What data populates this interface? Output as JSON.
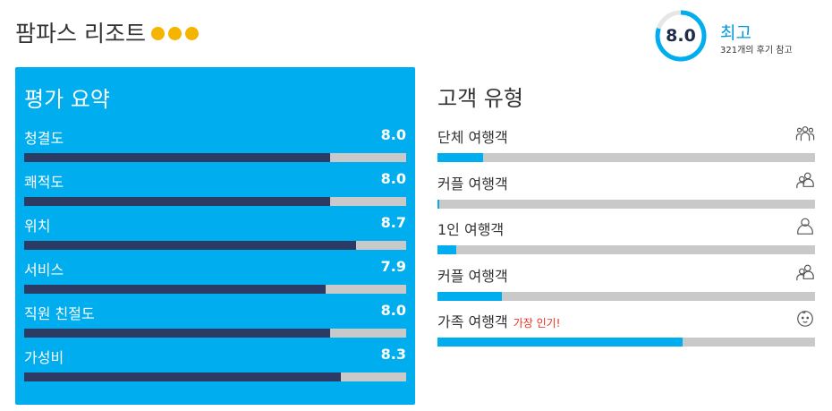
{
  "header": {
    "hotel_name": "팜파스 리조트",
    "stars": 3,
    "score": "8.0",
    "score_fraction": 0.8,
    "score_label": "최고",
    "score_sub": "321개의 후기 참고"
  },
  "summary": {
    "title": "평가 요약",
    "items": [
      {
        "label": "청결도",
        "value": "8.0",
        "fraction": 0.8
      },
      {
        "label": "쾌적도",
        "value": "8.0",
        "fraction": 0.8
      },
      {
        "label": "위치",
        "value": "8.7",
        "fraction": 0.87
      },
      {
        "label": "서비스",
        "value": "7.9",
        "fraction": 0.79
      },
      {
        "label": "직원 친절도",
        "value": "8.0",
        "fraction": 0.8
      },
      {
        "label": "가성비",
        "value": "8.3",
        "fraction": 0.83
      }
    ]
  },
  "customers": {
    "title": "고객 유형",
    "items": [
      {
        "label": "단체 여행객",
        "badge": "",
        "fraction": 0.12,
        "icon": "group-icon"
      },
      {
        "label": "커플 여행객",
        "badge": "",
        "fraction": 0.005,
        "icon": "couple-icon"
      },
      {
        "label": "1인 여행객",
        "badge": "",
        "fraction": 0.05,
        "icon": "single-person-icon"
      },
      {
        "label": "커플 여행객",
        "badge": "",
        "fraction": 0.17,
        "icon": "couple-icon"
      },
      {
        "label": "가족 여행객",
        "badge": "가장 인기!",
        "fraction": 0.65,
        "icon": "baby-icon"
      }
    ]
  }
}
